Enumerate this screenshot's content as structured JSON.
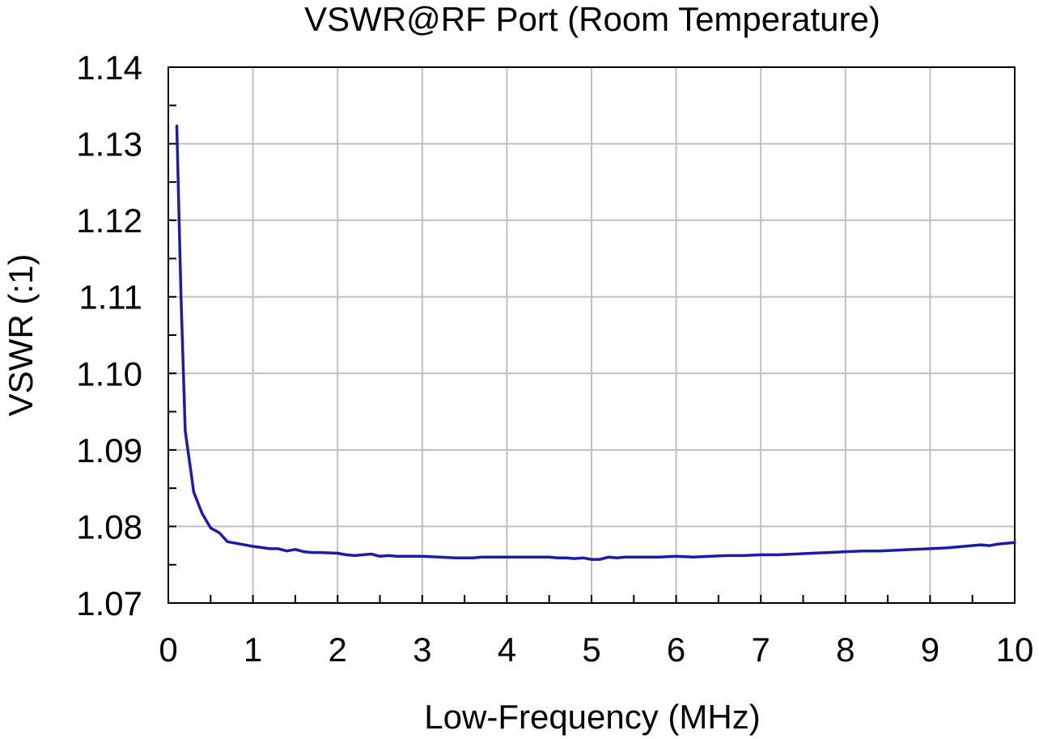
{
  "chart_data": {
    "type": "line",
    "title": "VSWR@RF Port (Room Temperature)",
    "xlabel": "Low-Frequency (MHz)",
    "ylabel": "VSWR (:1)",
    "xlim": [
      0,
      10
    ],
    "ylim": [
      1.07,
      1.14
    ],
    "x_ticks": [
      0,
      1,
      2,
      3,
      4,
      5,
      6,
      7,
      8,
      9,
      10
    ],
    "x_tick_labels": [
      "0",
      "1",
      "2",
      "3",
      "4",
      "5",
      "6",
      "7",
      "8",
      "9",
      "10"
    ],
    "y_ticks": [
      1.07,
      1.08,
      1.09,
      1.1,
      1.11,
      1.12,
      1.13,
      1.14
    ],
    "y_tick_labels": [
      "1.07",
      "1.08",
      "1.09",
      "1.10",
      "1.11",
      "1.12",
      "1.13",
      "1.14"
    ],
    "grid": true,
    "legend": "none",
    "series": [
      {
        "color": "#1c1ca8",
        "x": [
          0.1,
          0.15,
          0.2,
          0.3,
          0.4,
          0.5,
          0.6,
          0.7,
          0.8,
          1.0,
          1.2,
          1.3,
          1.4,
          1.5,
          1.6,
          1.7,
          1.8,
          2.0,
          2.1,
          2.2,
          2.3,
          2.4,
          2.5,
          2.6,
          2.7,
          2.8,
          2.9,
          3.0,
          3.2,
          3.4,
          3.6,
          3.7,
          3.8,
          4.0,
          4.2,
          4.4,
          4.5,
          4.6,
          4.7,
          4.8,
          4.9,
          5.0,
          5.1,
          5.2,
          5.3,
          5.4,
          5.6,
          5.8,
          6.0,
          6.2,
          6.4,
          6.6,
          6.8,
          7.0,
          7.2,
          7.4,
          7.6,
          7.8,
          8.0,
          8.2,
          8.4,
          8.6,
          8.8,
          9.0,
          9.2,
          9.4,
          9.6,
          9.7,
          9.8,
          10.0
        ],
        "values": [
          1.1323,
          1.11,
          1.0925,
          1.0845,
          1.0817,
          1.0798,
          1.0792,
          1.078,
          1.0778,
          1.0774,
          1.0771,
          1.0771,
          1.0768,
          1.077,
          1.0767,
          1.0766,
          1.0766,
          1.0765,
          1.0763,
          1.0762,
          1.0763,
          1.0764,
          1.0761,
          1.0762,
          1.0761,
          1.0761,
          1.0761,
          1.0761,
          1.076,
          1.0759,
          1.0759,
          1.076,
          1.076,
          1.076,
          1.076,
          1.076,
          1.076,
          1.0759,
          1.0759,
          1.0758,
          1.0759,
          1.0757,
          1.0757,
          1.076,
          1.0759,
          1.076,
          1.076,
          1.076,
          1.0761,
          1.076,
          1.0761,
          1.0762,
          1.0762,
          1.0763,
          1.0763,
          1.0764,
          1.0765,
          1.0766,
          1.0767,
          1.0768,
          1.0768,
          1.0769,
          1.077,
          1.0771,
          1.0772,
          1.0774,
          1.0776,
          1.0775,
          1.0777,
          1.0779
        ]
      }
    ]
  }
}
